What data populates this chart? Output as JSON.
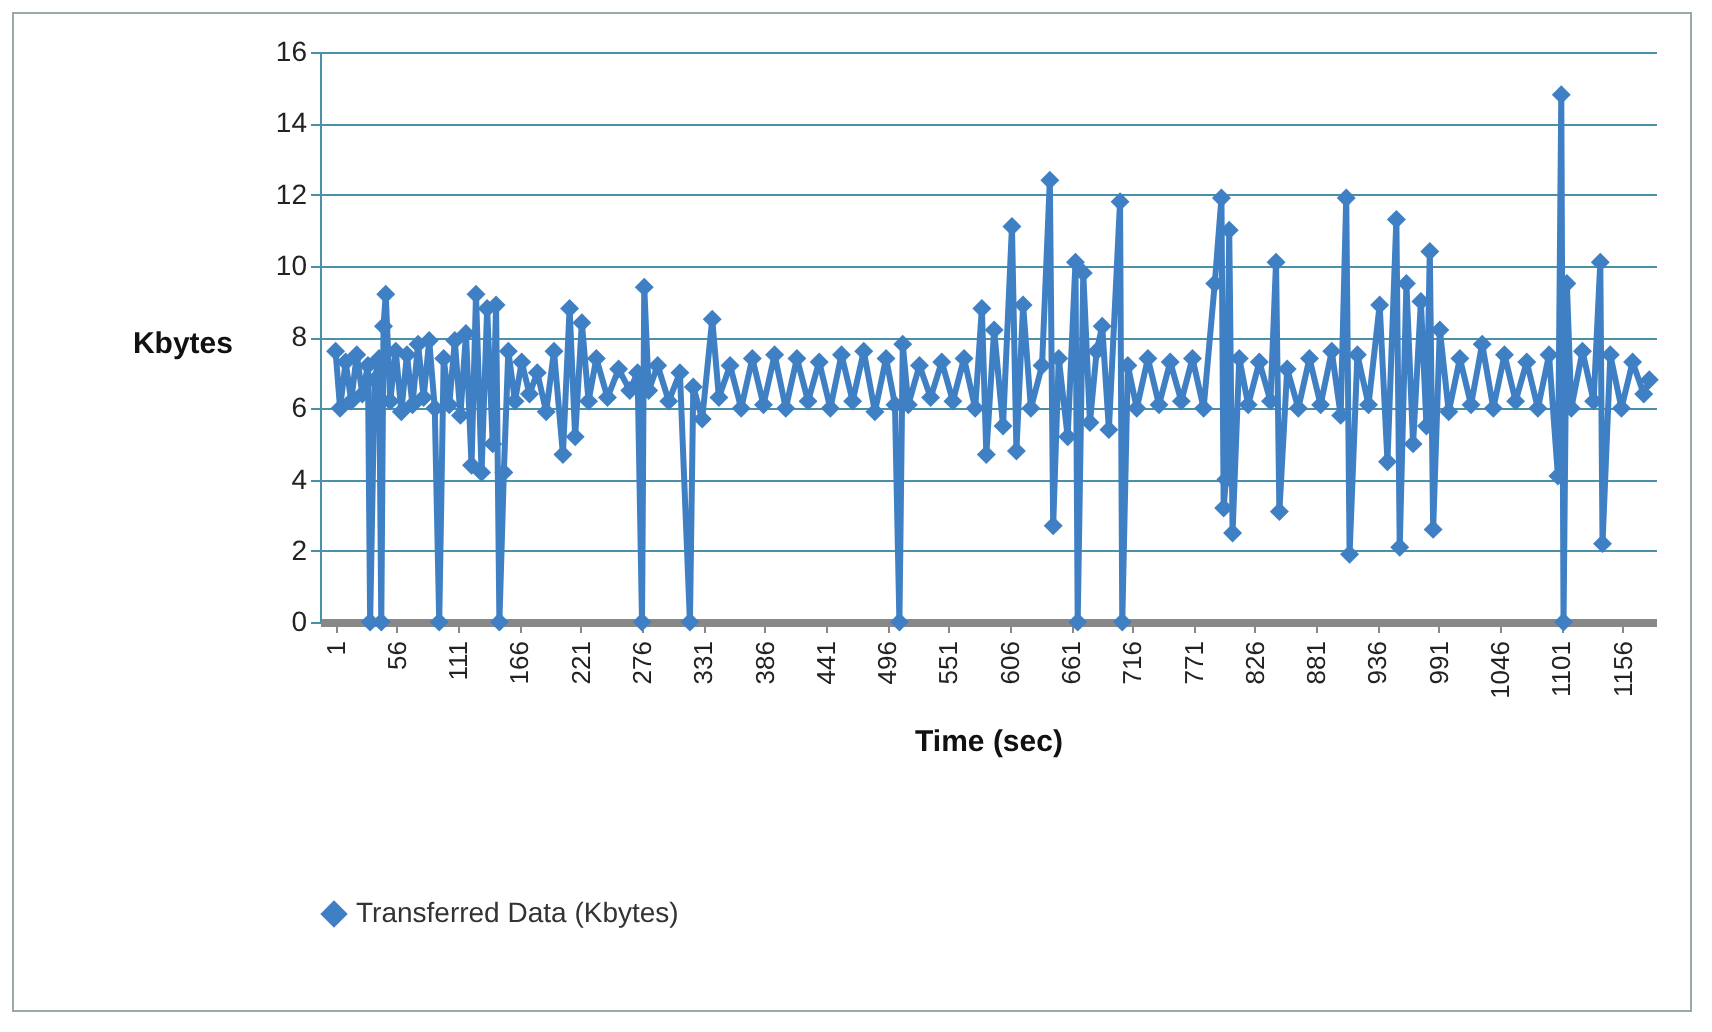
{
  "chart_data": {
    "type": "line",
    "xlabel": "Time (sec)",
    "ylabel": "Kbytes",
    "xlim": [
      -13,
      1186
    ],
    "ylim": [
      0,
      16
    ],
    "xticks": [
      1,
      56,
      111,
      166,
      221,
      276,
      331,
      386,
      441,
      496,
      551,
      606,
      661,
      716,
      771,
      826,
      881,
      936,
      991,
      1046,
      1101,
      1156
    ],
    "yticks": [
      0,
      2,
      4,
      6,
      8,
      10,
      12,
      14,
      16
    ],
    "grid": "y",
    "legend": "bottom",
    "marker": "diamond",
    "line_style": "solid",
    "x": [
      1,
      5,
      10,
      15,
      20,
      25,
      30,
      32,
      36,
      40,
      42,
      44,
      46,
      50,
      55,
      60,
      65,
      70,
      75,
      80,
      85,
      90,
      94,
      98,
      103,
      108,
      113,
      118,
      123,
      127,
      132,
      137,
      142,
      145,
      148,
      152,
      156,
      162,
      168,
      175,
      182,
      190,
      197,
      205,
      211,
      216,
      222,
      228,
      235,
      245,
      255,
      265,
      272,
      276,
      278,
      282,
      290,
      300,
      310,
      319,
      322,
      330,
      339,
      345,
      355,
      365,
      375,
      385,
      395,
      405,
      415,
      425,
      435,
      445,
      455,
      465,
      475,
      485,
      495,
      503,
      507,
      510,
      515,
      525,
      535,
      545,
      555,
      565,
      575,
      581,
      585,
      592,
      600,
      608,
      612,
      618,
      625,
      635,
      642,
      645,
      650,
      658,
      665,
      667,
      672,
      678,
      684,
      689,
      695,
      705,
      707,
      712,
      720,
      730,
      740,
      750,
      760,
      770,
      780,
      790,
      796,
      798,
      800,
      803,
      806,
      812,
      820,
      830,
      840,
      845,
      848,
      855,
      865,
      875,
      885,
      895,
      903,
      908,
      911,
      918,
      928,
      938,
      945,
      953,
      956,
      962,
      968,
      975,
      980,
      983,
      986,
      992,
      1000,
      1010,
      1020,
      1030,
      1040,
      1050,
      1060,
      1070,
      1080,
      1090,
      1098,
      1101,
      1103,
      1106,
      1110,
      1120,
      1130,
      1136,
      1138,
      1145,
      1155,
      1165,
      1175,
      1180
    ],
    "series": [
      {
        "name": "Transferred Data (Kbytes)",
        "color": "#3f7fc4",
        "values": [
          7.6,
          6.0,
          7.3,
          6.2,
          7.5,
          6.4,
          7.2,
          0,
          6.8,
          7.4,
          0,
          8.3,
          9.2,
          6.2,
          7.6,
          5.9,
          7.5,
          6.1,
          7.8,
          6.3,
          7.9,
          6.0,
          0,
          7.4,
          6.1,
          7.9,
          5.8,
          8.1,
          4.4,
          9.2,
          4.2,
          8.8,
          5.0,
          8.9,
          0,
          4.2,
          7.6,
          6.2,
          7.3,
          6.4,
          7.0,
          5.9,
          7.6,
          4.7,
          8.8,
          5.2,
          8.4,
          6.2,
          7.4,
          6.3,
          7.1,
          6.5,
          7.0,
          0,
          9.4,
          6.5,
          7.2,
          6.2,
          7.0,
          0,
          6.6,
          5.7,
          8.5,
          6.3,
          7.2,
          6.0,
          7.4,
          6.1,
          7.5,
          6.0,
          7.4,
          6.2,
          7.3,
          6.0,
          7.5,
          6.2,
          7.6,
          5.9,
          7.4,
          6.1,
          0,
          7.8,
          6.1,
          7.2,
          6.3,
          7.3,
          6.2,
          7.4,
          6.0,
          8.8,
          4.7,
          8.2,
          5.5,
          11.1,
          4.8,
          8.9,
          6.0,
          7.2,
          12.4,
          2.7,
          7.4,
          5.2,
          10.1,
          0,
          9.8,
          5.6,
          7.6,
          8.3,
          5.4,
          11.8,
          0,
          7.2,
          6.0,
          7.4,
          6.1,
          7.3,
          6.2,
          7.4,
          6.0,
          9.5,
          11.9,
          3.2,
          4.0,
          11.0,
          2.5,
          7.4,
          6.1,
          7.3,
          6.2,
          10.1,
          3.1,
          7.1,
          6.0,
          7.4,
          6.1,
          7.6,
          5.8,
          11.9,
          1.9,
          7.5,
          6.1,
          8.9,
          4.5,
          11.3,
          2.1,
          9.5,
          5.0,
          9.0,
          5.5,
          10.4,
          2.6,
          8.2,
          5.9,
          7.4,
          6.1,
          7.8,
          6.0,
          7.5,
          6.2,
          7.3,
          6.0,
          7.5,
          4.1,
          14.8,
          0,
          9.5,
          6.0,
          7.6,
          6.2,
          10.1,
          2.2,
          7.5,
          6.0,
          7.3,
          6.4,
          6.8
        ]
      }
    ]
  }
}
